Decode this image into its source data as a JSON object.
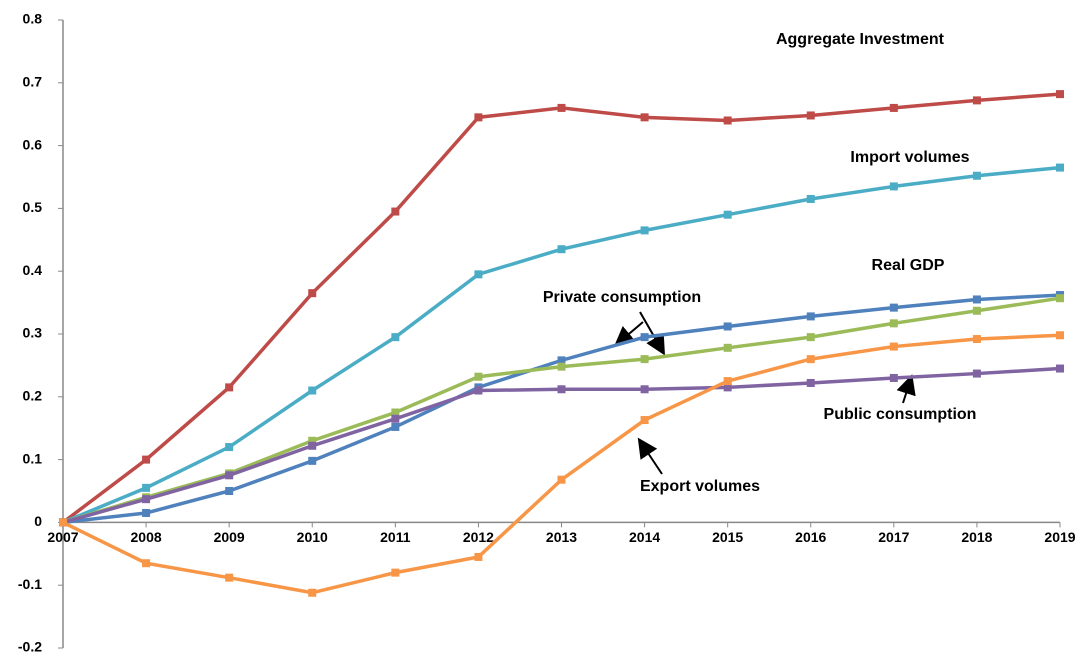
{
  "chart_data": {
    "type": "line",
    "categories": [
      "2007",
      "2008",
      "2009",
      "2010",
      "2011",
      "2012",
      "2013",
      "2014",
      "2015",
      "2016",
      "2017",
      "2018",
      "2019"
    ],
    "series": [
      {
        "name": "Aggregate Investment",
        "color": "#be4b48",
        "values": [
          0,
          0.1,
          0.215,
          0.365,
          0.495,
          0.645,
          0.66,
          0.645,
          0.64,
          0.648,
          0.66,
          0.672,
          0.682
        ]
      },
      {
        "name": "Import volumes",
        "color": "#4bacc6",
        "values": [
          0,
          0.055,
          0.12,
          0.21,
          0.295,
          0.395,
          0.435,
          0.465,
          0.49,
          0.515,
          0.535,
          0.552,
          0.565
        ]
      },
      {
        "name": "Real GDP",
        "color": "#4f81bd",
        "values": [
          0,
          0.015,
          0.05,
          0.098,
          0.152,
          0.215,
          0.258,
          0.295,
          0.312,
          0.328,
          0.342,
          0.355,
          0.362
        ]
      },
      {
        "name": "Private consumption",
        "color": "#9bbb59",
        "values": [
          0,
          0.04,
          0.078,
          0.13,
          0.175,
          0.232,
          0.248,
          0.26,
          0.278,
          0.295,
          0.317,
          0.337,
          0.357
        ]
      },
      {
        "name": "Public consumption",
        "color": "#8064a2",
        "values": [
          0,
          0.037,
          0.075,
          0.122,
          0.165,
          0.21,
          0.212,
          0.212,
          0.215,
          0.222,
          0.23,
          0.237,
          0.245
        ]
      },
      {
        "name": "Export volumes",
        "color": "#f79646",
        "values": [
          0,
          -0.065,
          -0.088,
          -0.112,
          -0.08,
          -0.055,
          0.068,
          0.163,
          0.225,
          0.26,
          0.28,
          0.292,
          0.298
        ]
      }
    ],
    "ylim": [
      -0.2,
      0.8
    ],
    "yticks": [
      -0.2,
      -0.1,
      0,
      0.1,
      0.2,
      0.3,
      0.4,
      0.5,
      0.6,
      0.7,
      0.8
    ]
  }
}
